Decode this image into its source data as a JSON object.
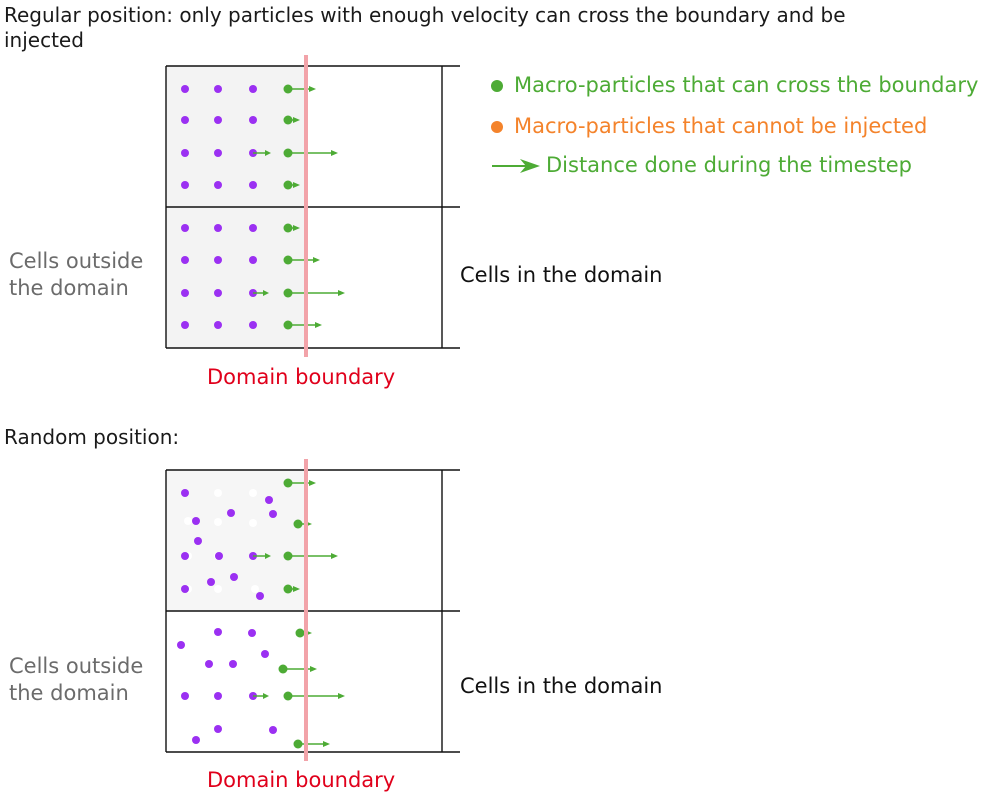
{
  "panels": [
    {
      "title": "Regular position: only particles with enough velocity can cross the boundary and be",
      "title_line2": "injected",
      "outside_label_line1": "Cells outside",
      "outside_label_line2": "the domain",
      "inside_label": "Cells in the domain",
      "boundary_label": "Domain boundary"
    },
    {
      "title": "Random position:",
      "outside_label_line1": "Cells outside",
      "outside_label_line2": "the domain",
      "inside_label": "Cells in the domain",
      "boundary_label": "Domain boundary"
    }
  ],
  "legend": {
    "crossing": "Macro-particles that can cross the boundary",
    "blocked": "Macro-particles that cannot be injected",
    "distance": "Distance done during the timestep"
  },
  "colors": {
    "purple": "#9b30f2",
    "green": "#4dab35",
    "orange": "#f4832b",
    "boundary": "#f2a3a9",
    "boundary_text": "#e0001b",
    "outside_fill": "#f3f3f3",
    "outside_fill_random": "#f6f6f6",
    "grid": "#111111"
  }
}
